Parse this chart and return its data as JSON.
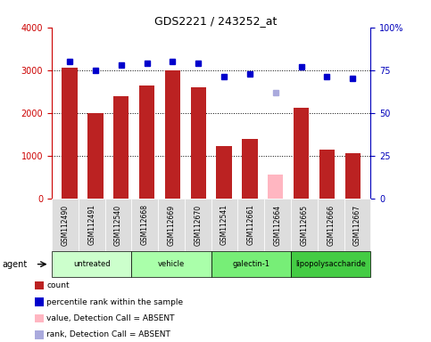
{
  "title": "GDS2221 / 243252_at",
  "samples": [
    "GSM112490",
    "GSM112491",
    "GSM112540",
    "GSM112668",
    "GSM112669",
    "GSM112670",
    "GSM112541",
    "GSM112661",
    "GSM112664",
    "GSM112665",
    "GSM112666",
    "GSM112667"
  ],
  "counts": [
    3050,
    2000,
    2380,
    2630,
    3000,
    2600,
    1230,
    1380,
    550,
    2110,
    1150,
    1050
  ],
  "counts_absent": [
    false,
    false,
    false,
    false,
    false,
    false,
    false,
    false,
    true,
    false,
    false,
    false
  ],
  "percentile_ranks": [
    80,
    75,
    78,
    79,
    80,
    79,
    71,
    73,
    62,
    77,
    71,
    70
  ],
  "rank_absent": [
    false,
    false,
    false,
    false,
    false,
    false,
    false,
    false,
    true,
    false,
    false,
    false
  ],
  "bar_color_normal": "#BB2222",
  "bar_color_absent": "#FFB6C1",
  "dot_color_normal": "#0000CC",
  "dot_color_absent": "#AAAADD",
  "ylim_left": [
    0,
    4000
  ],
  "ylim_right": [
    0,
    100
  ],
  "yticks_left": [
    0,
    1000,
    2000,
    3000,
    4000
  ],
  "yticks_right": [
    0,
    25,
    50,
    75,
    100
  ],
  "groups": [
    {
      "label": "untreated",
      "start": 0,
      "end": 2
    },
    {
      "label": "vehicle",
      "start": 3,
      "end": 5
    },
    {
      "label": "galectin-1",
      "start": 6,
      "end": 8
    },
    {
      "label": "lipopolysaccharide",
      "start": 9,
      "end": 11
    }
  ],
  "group_colors": [
    "#CCFFCC",
    "#AAFFAA",
    "#77EE77",
    "#44CC44"
  ],
  "left_tick_color": "#CC0000",
  "right_tick_color": "#0000BB",
  "legend_labels": [
    "count",
    "percentile rank within the sample",
    "value, Detection Call = ABSENT",
    "rank, Detection Call = ABSENT"
  ],
  "legend_colors": [
    "#BB2222",
    "#0000CC",
    "#FFB6C1",
    "#AAAADD"
  ]
}
